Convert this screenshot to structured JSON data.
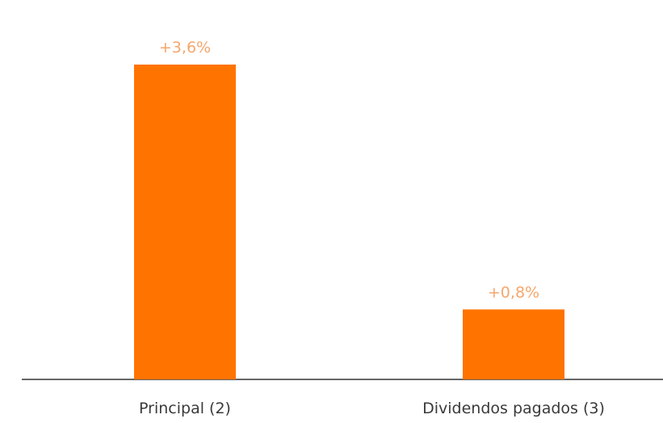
{
  "chart_data": {
    "type": "bar",
    "title": "",
    "categories": [
      "Principal (2)",
      "Dividendos pagados (3)"
    ],
    "values": [
      3.6,
      0.8
    ],
    "value_labels": [
      "+3,6%",
      "+0,8%"
    ],
    "ylim": [
      0,
      3.6
    ],
    "grid": false,
    "legend": "none",
    "bar_color": "#FF7300",
    "label_color": "#F5A66D",
    "axis_color": "#333333",
    "category_label_color": "#3a3a3a"
  }
}
